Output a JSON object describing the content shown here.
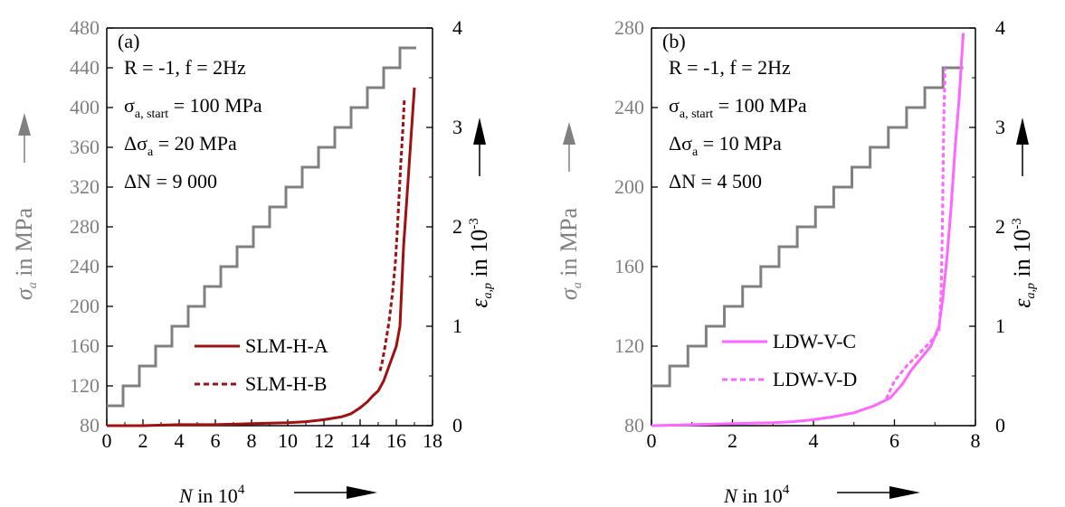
{
  "chart_data": [
    {
      "type": "line",
      "panel_label": "(a)",
      "xlabel_var": "N",
      "xlabel_unit": " in 10",
      "xlabel_exp": "4",
      "xlim": [
        0,
        18
      ],
      "x_ticks": [
        "0",
        "2",
        "4",
        "6",
        "8",
        "10",
        "12",
        "14",
        "16",
        "18"
      ],
      "ylabel_left": {
        "symbol": "σ",
        "sub": "a",
        "unit": " in MPa"
      },
      "ylim_left": [
        80,
        480
      ],
      "y_ticks_left": [
        "80",
        "120",
        "160",
        "200",
        "240",
        "280",
        "320",
        "360",
        "400",
        "440",
        "480"
      ],
      "ylabel_right": {
        "symbol": "ε",
        "sub": "a,p",
        "unit": " in 10",
        "exp": "-3"
      },
      "ylim_right": [
        0,
        4
      ],
      "y_ticks_right": [
        "0",
        "1",
        "2",
        "3",
        "4"
      ],
      "annotations": [
        {
          "text": "R = -1, f = 2Hz"
        },
        {
          "symbol": "σ",
          "sub": "a, start",
          "text": " = 100 MPa"
        },
        {
          "symbol": "Δσ",
          "sub": "a",
          "text": " = 20 MPa"
        },
        {
          "text": "ΔN = 9 000"
        }
      ],
      "stress_step": {
        "color": "#808080",
        "start_stress": 100,
        "step_stress": 20,
        "step_N": 0.9,
        "end_stress": 460,
        "end_N": 17.1
      },
      "series": [
        {
          "name": "SLM-H-A",
          "color": "#a01010",
          "style": "solid",
          "x": [
            0,
            2,
            4,
            6,
            8,
            10,
            11,
            12,
            13,
            13.5,
            14,
            14.4,
            14.7,
            15,
            15.3,
            15.6,
            16.0,
            16.2,
            16.3,
            16.4,
            16.55,
            16.7,
            16.85,
            17.0
          ],
          "y": [
            0.0,
            0.0,
            0.01,
            0.01,
            0.02,
            0.03,
            0.04,
            0.06,
            0.09,
            0.12,
            0.18,
            0.24,
            0.3,
            0.35,
            0.45,
            0.6,
            0.8,
            1.0,
            1.4,
            1.8,
            2.2,
            2.6,
            3.0,
            3.4
          ]
        },
        {
          "name": "SLM-H-B",
          "color": "#a01010",
          "style": "dash",
          "x": [
            15.1,
            15.2,
            15.4,
            15.6,
            15.8,
            15.95,
            16.05,
            16.15,
            16.25,
            16.35,
            16.45
          ],
          "y": [
            0.55,
            0.62,
            0.82,
            1.05,
            1.35,
            1.65,
            1.95,
            2.3,
            2.65,
            2.95,
            3.3
          ]
        }
      ]
    },
    {
      "type": "line",
      "panel_label": "(b)",
      "xlabel_var": "N",
      "xlabel_unit": " in 10",
      "xlabel_exp": "4",
      "xlim": [
        0,
        8
      ],
      "x_ticks": [
        "0",
        "2",
        "4",
        "6",
        "8"
      ],
      "ylabel_left": {
        "symbol": "σ",
        "sub": "a",
        "unit": " in MPa"
      },
      "ylim_left": [
        80,
        280
      ],
      "y_ticks_left": [
        "80",
        "120",
        "160",
        "200",
        "240",
        "280"
      ],
      "ylabel_right": {
        "symbol": "ε",
        "sub": "a,p",
        "unit": " in 10",
        "exp": "-3"
      },
      "ylim_right": [
        0,
        4
      ],
      "y_ticks_right": [
        "0",
        "1",
        "2",
        "3",
        "4"
      ],
      "annotations": [
        {
          "text": "R = -1, f = 2Hz"
        },
        {
          "symbol": "σ",
          "sub": "a, start",
          "text": " = 100 MPa"
        },
        {
          "symbol": "Δσ",
          "sub": "a",
          "text": " = 10 MPa"
        },
        {
          "text": "ΔN = 4 500"
        }
      ],
      "stress_step": {
        "color": "#808080",
        "start_stress": 100,
        "step_stress": 10,
        "step_N": 0.45,
        "end_stress": 260,
        "end_N": 7.7
      },
      "series": [
        {
          "name": "LDW-V-C",
          "color": "#ff66ff",
          "style": "solid",
          "x": [
            0,
            1,
            2,
            3,
            3.5,
            4,
            4.5,
            5,
            5.5,
            5.9,
            6.2,
            6.4,
            6.7,
            6.9,
            7.1,
            7.2,
            7.3,
            7.4,
            7.5,
            7.6,
            7.7
          ],
          "y": [
            0.0,
            0.01,
            0.02,
            0.03,
            0.04,
            0.06,
            0.09,
            0.13,
            0.2,
            0.28,
            0.42,
            0.55,
            0.7,
            0.8,
            1.0,
            1.3,
            1.7,
            2.2,
            2.8,
            3.3,
            3.95
          ]
        },
        {
          "name": "LDW-V-D",
          "color": "#ff66ff",
          "style": "dash",
          "x": [
            5.8,
            6.0,
            6.3,
            6.6,
            6.9,
            7.1,
            7.15,
            7.18,
            7.2,
            7.22,
            7.25
          ],
          "y": [
            0.27,
            0.45,
            0.6,
            0.72,
            0.85,
            0.95,
            1.3,
            1.9,
            2.5,
            3.1,
            3.6
          ]
        }
      ]
    }
  ]
}
